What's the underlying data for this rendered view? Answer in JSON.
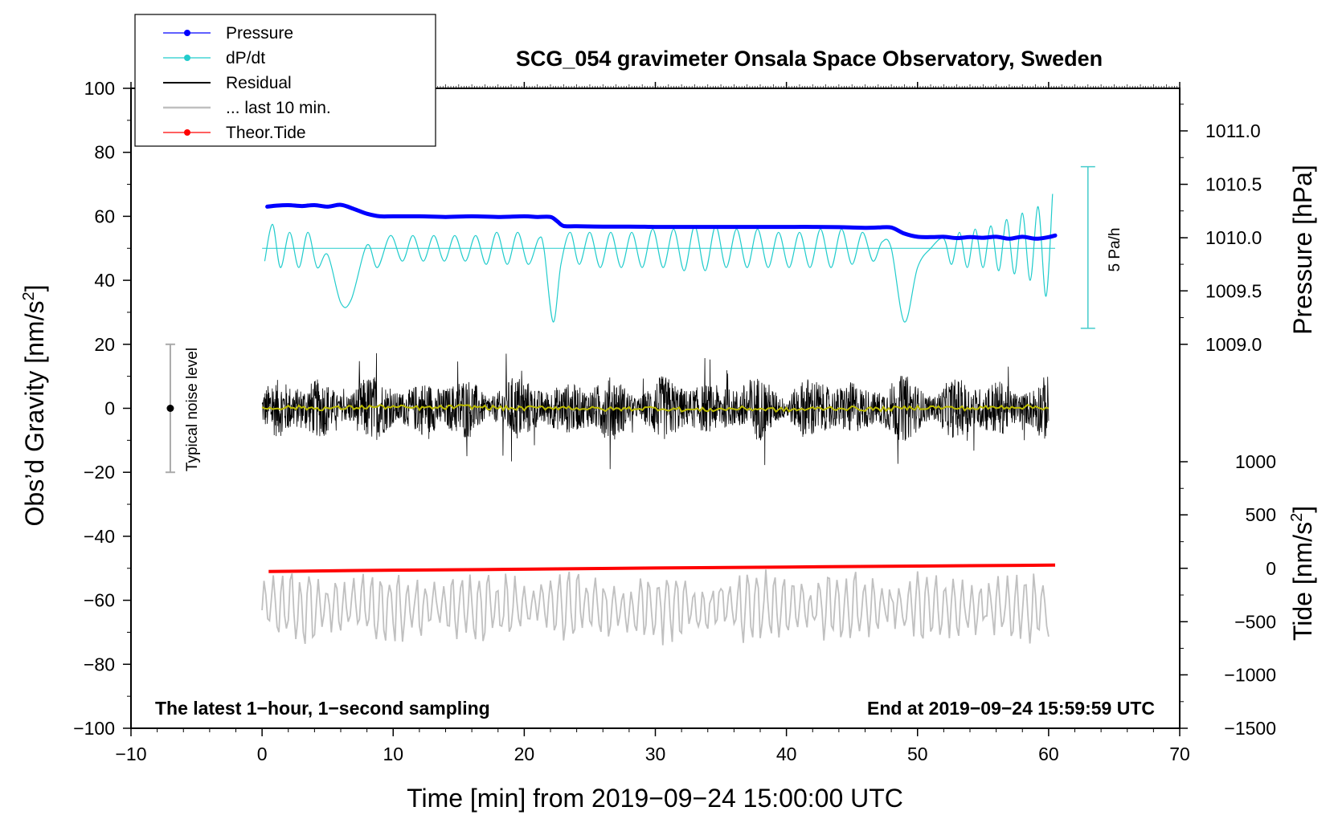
{
  "chart_data": {
    "type": "line",
    "title": "SCG_054 gravimeter Onsala Space Observatory, Sweden",
    "xlabel": "Time [min] from 2019−09−24 15:00:00 UTC",
    "xlim": [
      -10,
      70
    ],
    "xticks": [
      -10,
      0,
      10,
      20,
      30,
      40,
      50,
      60,
      70
    ],
    "xtick_labels": [
      "−10",
      "0",
      "10",
      "20",
      "30",
      "40",
      "50",
      "60",
      "70"
    ],
    "left_axis": {
      "label_main": "Obs’d Gravity [nm/s",
      "label_sup": "2",
      "label_end": "]",
      "ylim": [
        -100,
        100
      ],
      "ticks": [
        -100,
        -80,
        -60,
        -40,
        -20,
        0,
        20,
        40,
        60,
        80,
        100
      ],
      "tick_labels": [
        "−100",
        "−80",
        "−60",
        "−40",
        "−20",
        "0",
        "20",
        "40",
        "60",
        "80",
        "100"
      ]
    },
    "right_pressure_axis": {
      "label": "Pressure [hPa]",
      "tick_values": [
        1009.0,
        1009.5,
        1010.0,
        1010.5,
        1011.0
      ],
      "tick_labels": [
        "1009.0",
        "1009.5",
        "1010.0",
        "1010.5",
        "1011.0"
      ],
      "left_equiv": [
        20,
        36.7,
        53.3,
        70,
        86.7
      ]
    },
    "right_tide_axis": {
      "label_main": "Tide [nm/s",
      "label_sup": "2",
      "label_end": "]",
      "tick_values": [
        1000,
        500,
        0,
        -500,
        -1000,
        -1500
      ],
      "tick_labels": [
        "1000",
        "500",
        "0",
        "−500",
        "−1000",
        "−1500"
      ],
      "left_equiv": [
        -16.7,
        -33.3,
        -50,
        -66.7,
        -83.3,
        -100
      ]
    },
    "legend": {
      "placement": "top-left",
      "entries": [
        {
          "label": "Pressure",
          "color": "#0000ff",
          "marker": true
        },
        {
          "label": "dP/dt",
          "color": "#22cccc",
          "marker": true
        },
        {
          "label": "Residual",
          "color": "#000000",
          "marker": false
        },
        {
          "label": "... last 10 min.",
          "color": "#c0c0c0",
          "marker": false
        },
        {
          "label": "Theor.Tide",
          "color": "#ff0000",
          "marker": true
        }
      ]
    },
    "series": [
      {
        "name": "Pressure",
        "color": "#0000ff",
        "kind": "smooth",
        "x": [
          0.4,
          1,
          2,
          3,
          4,
          5,
          6,
          7,
          8,
          9,
          10,
          12,
          14,
          16,
          18,
          20,
          21,
          22,
          22.5,
          23,
          24,
          26,
          28,
          30,
          32,
          34,
          36,
          38,
          40,
          42,
          44,
          46,
          47,
          48,
          49,
          50,
          51,
          52,
          53,
          54,
          55,
          56,
          57,
          58,
          59,
          60,
          60.5
        ],
        "y": [
          63.0,
          63.3,
          63.5,
          63.2,
          63.5,
          63.0,
          63.6,
          62.3,
          60.8,
          60.0,
          60.0,
          60.0,
          59.8,
          60.0,
          59.8,
          60.0,
          59.8,
          59.8,
          58.5,
          57.0,
          56.9,
          56.8,
          56.8,
          56.7,
          56.7,
          56.7,
          56.7,
          56.7,
          56.7,
          56.7,
          56.6,
          56.4,
          56.5,
          56.5,
          54.6,
          53.6,
          53.5,
          53.6,
          53.2,
          53.5,
          53.3,
          53.6,
          53.0,
          53.6,
          53.0,
          53.5,
          54.0
        ]
      },
      {
        "name": "dP/dt",
        "color": "#22cccc",
        "kind": "smooth",
        "baseline": 50,
        "x": [
          0.2,
          0.8,
          1.4,
          2.1,
          2.8,
          3.5,
          4.2,
          5.0,
          6.0,
          6.8,
          8.0,
          8.8,
          9.8,
          10.7,
          11.5,
          12.3,
          13.1,
          13.9,
          14.7,
          15.5,
          16.3,
          17.1,
          17.9,
          18.7,
          19.5,
          20.3,
          21.1,
          21.5,
          22.2,
          22.8,
          23.5,
          24.2,
          25.0,
          25.8,
          26.6,
          27.4,
          28.2,
          29.0,
          29.8,
          30.6,
          31.4,
          32.2,
          33.0,
          33.8,
          34.6,
          35.4,
          36.2,
          37.0,
          37.8,
          38.6,
          39.4,
          40.2,
          41.0,
          41.8,
          42.6,
          43.4,
          44.2,
          45.0,
          45.8,
          46.6,
          47.3,
          48.0,
          49.0,
          50.0,
          51.0,
          52.0,
          52.6,
          53.2,
          53.8,
          54.4,
          55.0,
          55.6,
          56.2,
          56.8,
          57.4,
          58.0,
          58.6,
          59.2,
          59.8,
          60.3
        ],
        "y": [
          46,
          57.5,
          44,
          55,
          44,
          55,
          44,
          48,
          33,
          34,
          51,
          44,
          54,
          46,
          54,
          46,
          54,
          46,
          54,
          46,
          54,
          45,
          55,
          45,
          55,
          45,
          53,
          50,
          27,
          45,
          55,
          45,
          55,
          44,
          55,
          44,
          55,
          44,
          56,
          44,
          56,
          43,
          57,
          43,
          57,
          44,
          56,
          44,
          56,
          44,
          55,
          44,
          55,
          44,
          56,
          44,
          56,
          45,
          55,
          46,
          52,
          50,
          27,
          44,
          50,
          53,
          45,
          55,
          44,
          56,
          44,
          57,
          43,
          59,
          42,
          61,
          40,
          63,
          35,
          67
        ]
      },
      {
        "name": "Residual",
        "color": "#000000",
        "kind": "noise",
        "x_range": [
          0,
          60
        ],
        "center": 0,
        "typical_amplitude": 7,
        "min": -19,
        "max": 20,
        "smoothed_color": "#bbbb00"
      },
      {
        "name": "... last 10 min.",
        "color": "#c0c0c0",
        "kind": "noise",
        "x_range": [
          0,
          60
        ],
        "center": -62,
        "typical_amplitude": 7,
        "min": -80,
        "max": -48
      },
      {
        "name": "Theor.Tide",
        "color": "#ff0000",
        "kind": "line",
        "x": [
          0.5,
          10,
          20,
          30,
          40,
          50,
          60.5
        ],
        "y": [
          -51,
          -50.6,
          -50.3,
          -49.9,
          -49.6,
          -49.3,
          -49
        ]
      }
    ],
    "scale_bars": [
      {
        "name": "dP/dt scale",
        "label": "5 Pa/h",
        "x": 63,
        "y_top": 75.5,
        "y_bottom": 25,
        "color": "#44cccc"
      },
      {
        "name": "Typical noise level",
        "label": "Typical noise level",
        "x": -7,
        "y_top": 20,
        "y_bottom": -20,
        "center": 0,
        "color": "#aaaaaa"
      }
    ],
    "annotations": {
      "bottom_left": "The latest 1−hour, 1−second sampling",
      "bottom_right": "End at 2019−09−24 15:59:59 UTC"
    }
  }
}
